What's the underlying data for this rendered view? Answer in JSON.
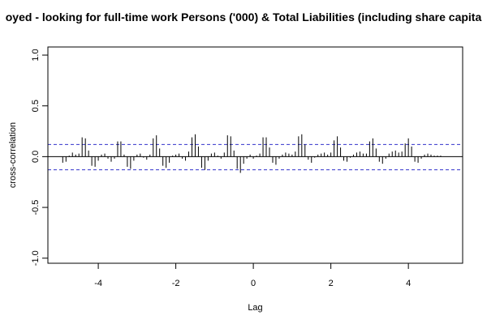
{
  "chart_data": {
    "type": "bar",
    "title": "oyed - looking for full-time work Persons ('000) & Total Liabilities (including share capita",
    "xlabel": "Lag",
    "ylabel": "cross-correlation",
    "xlim": [
      -5.3,
      5.4
    ],
    "ylim": [
      -1.05,
      1.08
    ],
    "x_ticks": [
      -4,
      -2,
      0,
      2,
      4
    ],
    "x_tick_labels": [
      "-4",
      "-2",
      "0",
      "2",
      "4"
    ],
    "y_ticks": [
      -1.0,
      -0.5,
      0.0,
      0.5,
      1.0
    ],
    "y_tick_labels": [
      "-1.0",
      "-0.5",
      "0.0",
      "0.5",
      "1.0"
    ],
    "confidence_band": {
      "upper": 0.12,
      "lower": -0.13,
      "color": "#3333cc"
    },
    "zero_line": 0,
    "bar_color": "#000000",
    "lags": [
      -4.917,
      -4.833,
      -4.75,
      -4.667,
      -4.583,
      -4.5,
      -4.417,
      -4.333,
      -4.25,
      -4.167,
      -4.083,
      -4.0,
      -3.917,
      -3.833,
      -3.75,
      -3.667,
      -3.583,
      -3.5,
      -3.417,
      -3.333,
      -3.25,
      -3.167,
      -3.083,
      -3.0,
      -2.917,
      -2.833,
      -2.75,
      -2.667,
      -2.583,
      -2.5,
      -2.417,
      -2.333,
      -2.25,
      -2.167,
      -2.083,
      -2.0,
      -1.917,
      -1.833,
      -1.75,
      -1.667,
      -1.583,
      -1.5,
      -1.417,
      -1.333,
      -1.25,
      -1.167,
      -1.083,
      -1.0,
      -0.917,
      -0.833,
      -0.75,
      -0.667,
      -0.583,
      -0.5,
      -0.417,
      -0.333,
      -0.25,
      -0.167,
      -0.083,
      0.0,
      0.083,
      0.167,
      0.25,
      0.333,
      0.417,
      0.5,
      0.583,
      0.667,
      0.75,
      0.833,
      0.917,
      1.0,
      1.083,
      1.167,
      1.25,
      1.333,
      1.417,
      1.5,
      1.583,
      1.667,
      1.75,
      1.833,
      1.917,
      2.0,
      2.083,
      2.167,
      2.25,
      2.333,
      2.417,
      2.5,
      2.583,
      2.667,
      2.75,
      2.833,
      2.917,
      3.0,
      3.083,
      3.167,
      3.25,
      3.333,
      3.417,
      3.5,
      3.583,
      3.667,
      3.75,
      3.833,
      3.917,
      4.0,
      4.083,
      4.167,
      4.25,
      4.333,
      4.417,
      4.5,
      4.583,
      4.667,
      4.75,
      4.833,
      4.917
    ],
    "values": [
      -0.06,
      -0.05,
      0.01,
      0.04,
      0.02,
      0.03,
      0.19,
      0.18,
      0.06,
      -0.09,
      -0.1,
      -0.04,
      0.02,
      0.03,
      -0.02,
      -0.05,
      -0.02,
      0.15,
      0.15,
      0.02,
      -0.1,
      -0.12,
      -0.04,
      0.02,
      0.03,
      -0.01,
      -0.03,
      0.02,
      0.18,
      0.21,
      0.08,
      -0.09,
      -0.11,
      -0.06,
      0.01,
      0.02,
      0.03,
      -0.02,
      -0.04,
      0.05,
      0.19,
      0.22,
      0.1,
      -0.11,
      -0.13,
      -0.04,
      0.03,
      0.04,
      0.01,
      -0.02,
      0.04,
      0.21,
      0.2,
      0.06,
      -0.12,
      -0.16,
      -0.07,
      -0.02,
      0.02,
      -0.02,
      0.01,
      0.03,
      0.19,
      0.19,
      0.09,
      -0.06,
      -0.08,
      -0.02,
      0.02,
      0.04,
      0.03,
      0.02,
      0.05,
      0.2,
      0.22,
      0.12,
      -0.03,
      -0.06,
      -0.01,
      0.02,
      0.03,
      0.04,
      0.02,
      0.04,
      0.16,
      0.2,
      0.09,
      -0.04,
      -0.05,
      -0.01,
      0.02,
      0.04,
      0.05,
      0.03,
      0.03,
      0.15,
      0.18,
      0.08,
      -0.05,
      -0.07,
      -0.02,
      0.03,
      0.05,
      0.06,
      0.04,
      0.05,
      0.13,
      0.18,
      0.1,
      -0.05,
      -0.06,
      -0.02,
      0.02,
      0.03,
      0.02,
      0.01,
      0.01,
      0.01,
      0.0
    ]
  }
}
